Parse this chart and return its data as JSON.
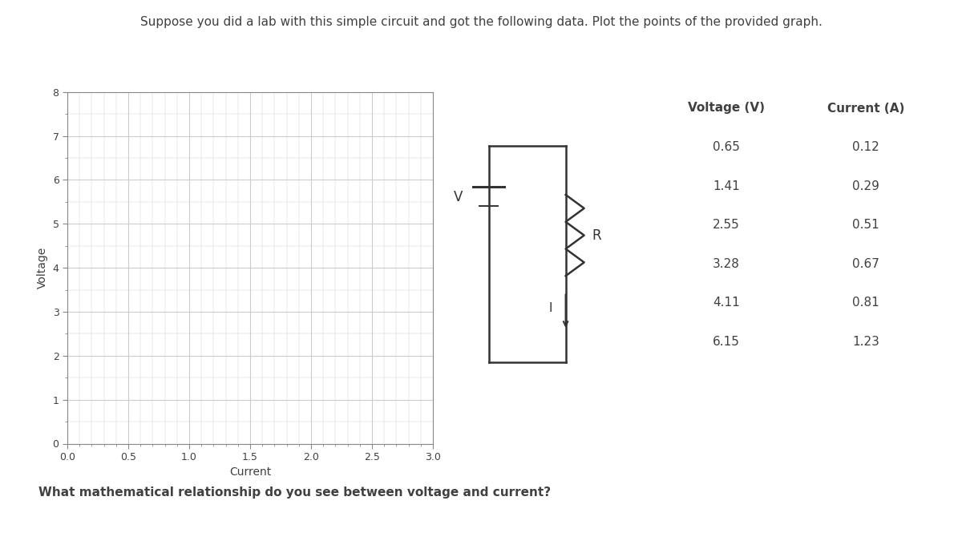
{
  "title": "Suppose you did a lab with this simple circuit and got the following data. Plot the points of the provided graph.",
  "question": "What mathematical relationship do you see between voltage and current?",
  "ylabel": "Voltage",
  "xlabel": "Current",
  "xlim": [
    0.0,
    3.0
  ],
  "ylim": [
    0,
    8
  ],
  "xticks": [
    0.0,
    0.5,
    1.0,
    1.5,
    2.0,
    2.5,
    3.0
  ],
  "yticks": [
    0,
    1,
    2,
    3,
    4,
    5,
    6,
    7,
    8
  ],
  "voltage": [
    0.65,
    1.41,
    2.55,
    3.28,
    4.11,
    6.15
  ],
  "current": [
    0.12,
    0.29,
    0.51,
    0.67,
    0.81,
    1.23
  ],
  "table_header_voltage": "Voltage (V)",
  "table_header_current": "Current (A)",
  "background_color": "#ffffff",
  "grid_color": "#cccccc",
  "text_color": "#404040",
  "title_fontsize": 11,
  "axis_label_fontsize": 10,
  "tick_fontsize": 9,
  "table_fontsize": 11
}
